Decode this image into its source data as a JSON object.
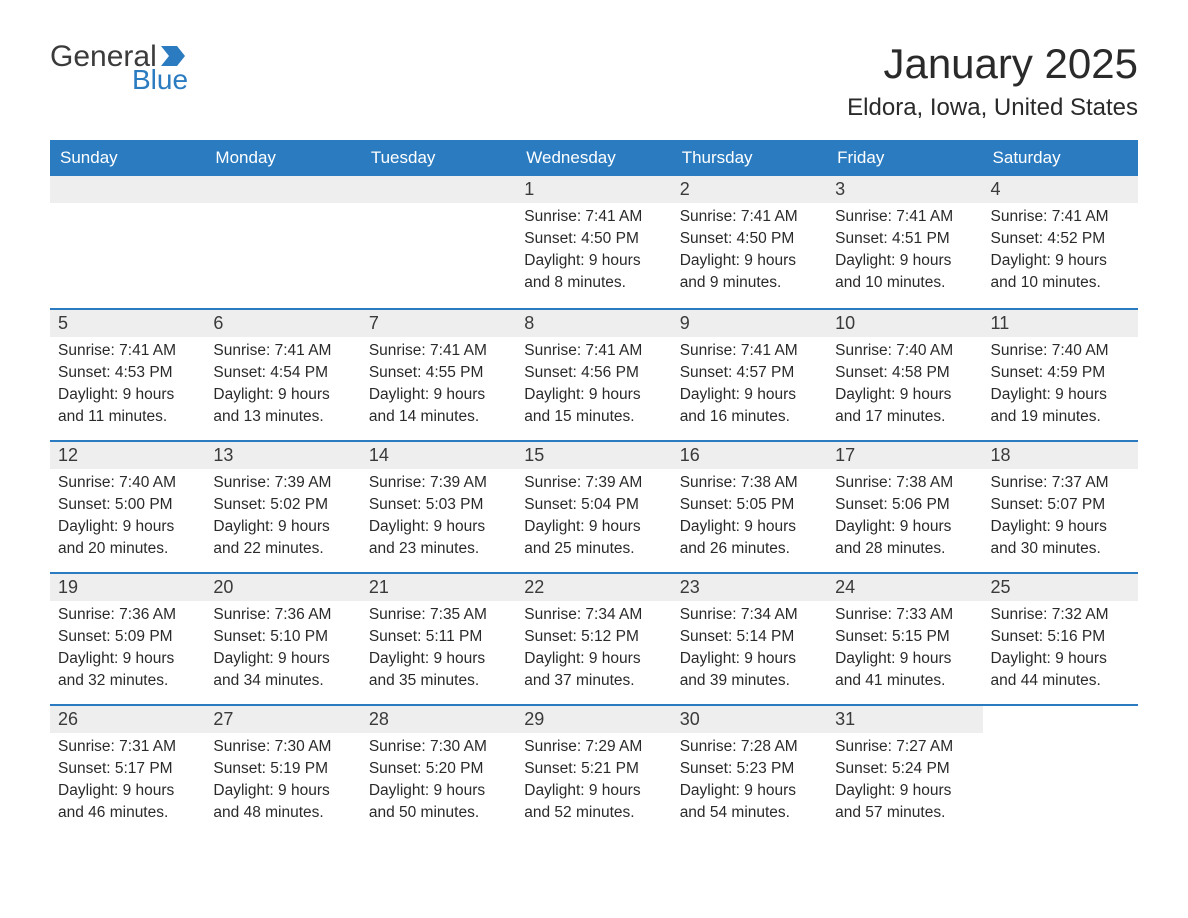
{
  "logo": {
    "text1": "General",
    "text2": "Blue",
    "flag_color": "#2a7bc0",
    "text_color_dark": "#3b3b3b",
    "text_color_blue": "#2a7bc0"
  },
  "title": "January 2025",
  "location": "Eldora, Iowa, United States",
  "colors": {
    "header_bg": "#2a7bc0",
    "header_text": "#ffffff",
    "day_number_bg": "#eeeeee",
    "text": "#2a2a2a",
    "border": "#2a7bc0"
  },
  "weekdays": [
    "Sunday",
    "Monday",
    "Tuesday",
    "Wednesday",
    "Thursday",
    "Friday",
    "Saturday"
  ],
  "weeks": [
    [
      {
        "empty": true
      },
      {
        "empty": true
      },
      {
        "empty": true
      },
      {
        "day": "1",
        "sunrise": "Sunrise: 7:41 AM",
        "sunset": "Sunset: 4:50 PM",
        "daylight1": "Daylight: 9 hours",
        "daylight2": "and 8 minutes."
      },
      {
        "day": "2",
        "sunrise": "Sunrise: 7:41 AM",
        "sunset": "Sunset: 4:50 PM",
        "daylight1": "Daylight: 9 hours",
        "daylight2": "and 9 minutes."
      },
      {
        "day": "3",
        "sunrise": "Sunrise: 7:41 AM",
        "sunset": "Sunset: 4:51 PM",
        "daylight1": "Daylight: 9 hours",
        "daylight2": "and 10 minutes."
      },
      {
        "day": "4",
        "sunrise": "Sunrise: 7:41 AM",
        "sunset": "Sunset: 4:52 PM",
        "daylight1": "Daylight: 9 hours",
        "daylight2": "and 10 minutes."
      }
    ],
    [
      {
        "day": "5",
        "sunrise": "Sunrise: 7:41 AM",
        "sunset": "Sunset: 4:53 PM",
        "daylight1": "Daylight: 9 hours",
        "daylight2": "and 11 minutes."
      },
      {
        "day": "6",
        "sunrise": "Sunrise: 7:41 AM",
        "sunset": "Sunset: 4:54 PM",
        "daylight1": "Daylight: 9 hours",
        "daylight2": "and 13 minutes."
      },
      {
        "day": "7",
        "sunrise": "Sunrise: 7:41 AM",
        "sunset": "Sunset: 4:55 PM",
        "daylight1": "Daylight: 9 hours",
        "daylight2": "and 14 minutes."
      },
      {
        "day": "8",
        "sunrise": "Sunrise: 7:41 AM",
        "sunset": "Sunset: 4:56 PM",
        "daylight1": "Daylight: 9 hours",
        "daylight2": "and 15 minutes."
      },
      {
        "day": "9",
        "sunrise": "Sunrise: 7:41 AM",
        "sunset": "Sunset: 4:57 PM",
        "daylight1": "Daylight: 9 hours",
        "daylight2": "and 16 minutes."
      },
      {
        "day": "10",
        "sunrise": "Sunrise: 7:40 AM",
        "sunset": "Sunset: 4:58 PM",
        "daylight1": "Daylight: 9 hours",
        "daylight2": "and 17 minutes."
      },
      {
        "day": "11",
        "sunrise": "Sunrise: 7:40 AM",
        "sunset": "Sunset: 4:59 PM",
        "daylight1": "Daylight: 9 hours",
        "daylight2": "and 19 minutes."
      }
    ],
    [
      {
        "day": "12",
        "sunrise": "Sunrise: 7:40 AM",
        "sunset": "Sunset: 5:00 PM",
        "daylight1": "Daylight: 9 hours",
        "daylight2": "and 20 minutes."
      },
      {
        "day": "13",
        "sunrise": "Sunrise: 7:39 AM",
        "sunset": "Sunset: 5:02 PM",
        "daylight1": "Daylight: 9 hours",
        "daylight2": "and 22 minutes."
      },
      {
        "day": "14",
        "sunrise": "Sunrise: 7:39 AM",
        "sunset": "Sunset: 5:03 PM",
        "daylight1": "Daylight: 9 hours",
        "daylight2": "and 23 minutes."
      },
      {
        "day": "15",
        "sunrise": "Sunrise: 7:39 AM",
        "sunset": "Sunset: 5:04 PM",
        "daylight1": "Daylight: 9 hours",
        "daylight2": "and 25 minutes."
      },
      {
        "day": "16",
        "sunrise": "Sunrise: 7:38 AM",
        "sunset": "Sunset: 5:05 PM",
        "daylight1": "Daylight: 9 hours",
        "daylight2": "and 26 minutes."
      },
      {
        "day": "17",
        "sunrise": "Sunrise: 7:38 AM",
        "sunset": "Sunset: 5:06 PM",
        "daylight1": "Daylight: 9 hours",
        "daylight2": "and 28 minutes."
      },
      {
        "day": "18",
        "sunrise": "Sunrise: 7:37 AM",
        "sunset": "Sunset: 5:07 PM",
        "daylight1": "Daylight: 9 hours",
        "daylight2": "and 30 minutes."
      }
    ],
    [
      {
        "day": "19",
        "sunrise": "Sunrise: 7:36 AM",
        "sunset": "Sunset: 5:09 PM",
        "daylight1": "Daylight: 9 hours",
        "daylight2": "and 32 minutes."
      },
      {
        "day": "20",
        "sunrise": "Sunrise: 7:36 AM",
        "sunset": "Sunset: 5:10 PM",
        "daylight1": "Daylight: 9 hours",
        "daylight2": "and 34 minutes."
      },
      {
        "day": "21",
        "sunrise": "Sunrise: 7:35 AM",
        "sunset": "Sunset: 5:11 PM",
        "daylight1": "Daylight: 9 hours",
        "daylight2": "and 35 minutes."
      },
      {
        "day": "22",
        "sunrise": "Sunrise: 7:34 AM",
        "sunset": "Sunset: 5:12 PM",
        "daylight1": "Daylight: 9 hours",
        "daylight2": "and 37 minutes."
      },
      {
        "day": "23",
        "sunrise": "Sunrise: 7:34 AM",
        "sunset": "Sunset: 5:14 PM",
        "daylight1": "Daylight: 9 hours",
        "daylight2": "and 39 minutes."
      },
      {
        "day": "24",
        "sunrise": "Sunrise: 7:33 AM",
        "sunset": "Sunset: 5:15 PM",
        "daylight1": "Daylight: 9 hours",
        "daylight2": "and 41 minutes."
      },
      {
        "day": "25",
        "sunrise": "Sunrise: 7:32 AM",
        "sunset": "Sunset: 5:16 PM",
        "daylight1": "Daylight: 9 hours",
        "daylight2": "and 44 minutes."
      }
    ],
    [
      {
        "day": "26",
        "sunrise": "Sunrise: 7:31 AM",
        "sunset": "Sunset: 5:17 PM",
        "daylight1": "Daylight: 9 hours",
        "daylight2": "and 46 minutes."
      },
      {
        "day": "27",
        "sunrise": "Sunrise: 7:30 AM",
        "sunset": "Sunset: 5:19 PM",
        "daylight1": "Daylight: 9 hours",
        "daylight2": "and 48 minutes."
      },
      {
        "day": "28",
        "sunrise": "Sunrise: 7:30 AM",
        "sunset": "Sunset: 5:20 PM",
        "daylight1": "Daylight: 9 hours",
        "daylight2": "and 50 minutes."
      },
      {
        "day": "29",
        "sunrise": "Sunrise: 7:29 AM",
        "sunset": "Sunset: 5:21 PM",
        "daylight1": "Daylight: 9 hours",
        "daylight2": "and 52 minutes."
      },
      {
        "day": "30",
        "sunrise": "Sunrise: 7:28 AM",
        "sunset": "Sunset: 5:23 PM",
        "daylight1": "Daylight: 9 hours",
        "daylight2": "and 54 minutes."
      },
      {
        "day": "31",
        "sunrise": "Sunrise: 7:27 AM",
        "sunset": "Sunset: 5:24 PM",
        "daylight1": "Daylight: 9 hours",
        "daylight2": "and 57 minutes."
      },
      {
        "empty": true
      }
    ]
  ]
}
